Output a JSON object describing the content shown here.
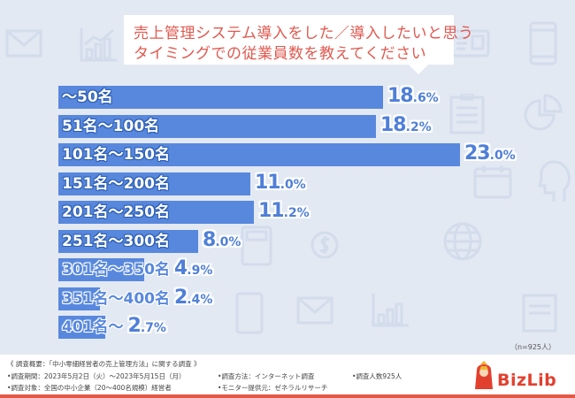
{
  "title": {
    "line1": "売上管理システム導入をした／導入したいと思う",
    "line2": "タイミングでの従業員数を教えてください"
  },
  "chart_data": {
    "type": "bar",
    "orientation": "horizontal",
    "title": "売上管理システム導入をした／導入したいと思うタイミングでの従業員数を教えてください",
    "categories": [
      "〜50名",
      "51名〜100名",
      "101名〜150名",
      "151名〜200名",
      "201名〜250名",
      "251名〜300名",
      "301名〜350名",
      "351名〜400名",
      "401名〜"
    ],
    "values": [
      18.6,
      18.2,
      23.0,
      11.0,
      11.2,
      8.0,
      4.9,
      2.4,
      2.7
    ],
    "value_labels": [
      {
        "int": "18",
        "dec": ".6%"
      },
      {
        "int": "18",
        "dec": ".2%"
      },
      {
        "int": "23",
        "dec": ".0%"
      },
      {
        "int": "11",
        "dec": ".0%"
      },
      {
        "int": "11",
        "dec": ".2%"
      },
      {
        "int": "8",
        "dec": ".0%"
      },
      {
        "int": "4",
        "dec": ".9%"
      },
      {
        "int": "2",
        "dec": ".4%"
      },
      {
        "int": "2",
        "dec": ".7%"
      }
    ],
    "unit": "%",
    "xlim": [
      0,
      23.0
    ],
    "grid": false,
    "legend": "none",
    "bar_color": "#5888dd"
  },
  "sample_note": "（n=925人）",
  "footer": {
    "summary": "《 調査概要：「中小零細経営者の売上管理方法」に関する調査 》",
    "period": "•調査期間：2023年5月2日（火）〜2023年5月15日（月）",
    "target": "•調査対象：全国の中小企業（20〜400名規模）経営者",
    "method": "•調査方法：インターネット調査",
    "provider": "•モニター提供元：ゼネラルリサーチ",
    "count": "•調査人数925人"
  },
  "brand": {
    "name": "BizLib",
    "accent": "#e25a45"
  }
}
